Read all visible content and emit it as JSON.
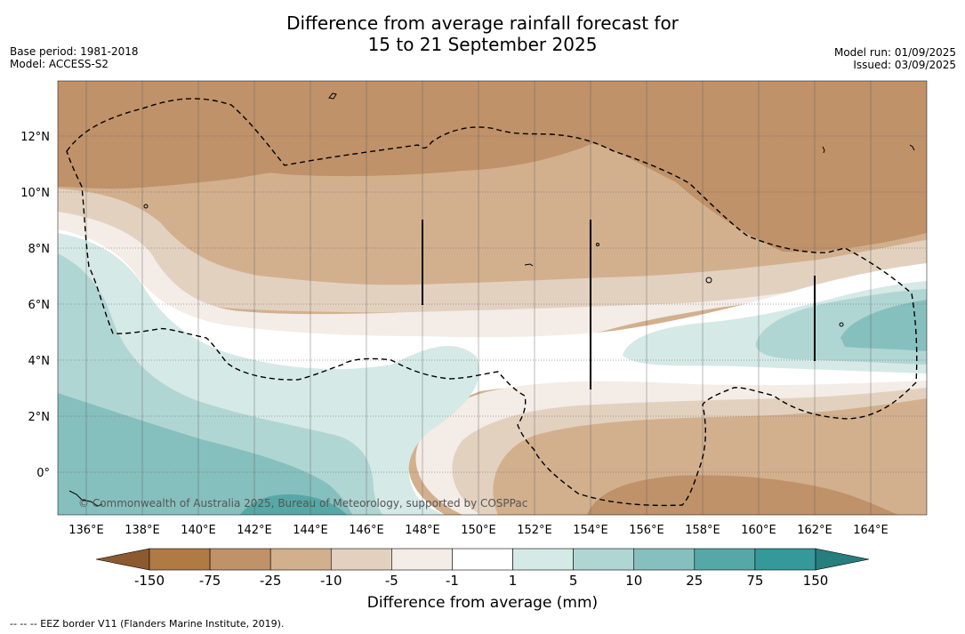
{
  "title_line1": "Difference from average rainfall forecast for",
  "title_line2": "15 to 21 September 2025",
  "meta_left": [
    "Base period: 1981-2018",
    "Model: ACCESS-S2"
  ],
  "meta_right": [
    "Model run: 01/09/2025",
    "Issued: 03/09/2025"
  ],
  "copyright": "© Commonwealth of Australia 2025, Bureau of Meteorology, supported by COSPPac",
  "lat_labels": [
    "12°N",
    "10°N",
    "8°N",
    "6°N",
    "4°N",
    "2°N",
    "0°"
  ],
  "lon_labels": [
    "136°E",
    "138°E",
    "140°E",
    "142°E",
    "144°E",
    "146°E",
    "148°E",
    "150°E",
    "152°E",
    "154°E",
    "156°E",
    "158°E",
    "160°E",
    "162°E",
    "164°E"
  ],
  "legend": {
    "title": "Difference from average (mm)",
    "ticks": [
      "-150",
      "-75",
      "-25",
      "-10",
      "-5",
      "-1",
      "1",
      "5",
      "10",
      "25",
      "75",
      "150"
    ],
    "colors": [
      "#8c5a2e",
      "#b07a45",
      "#c0926a",
      "#d2b08e",
      "#e3d1c0",
      "#f4ece6",
      "#ffffff",
      "#d5e9e7",
      "#b0d6d4",
      "#86c0be",
      "#56a8a6",
      "#35999a",
      "#267e7e"
    ]
  },
  "footnote": "--  --  -- EEZ border V11 (Flanders Marine Institute, 2019)."
}
